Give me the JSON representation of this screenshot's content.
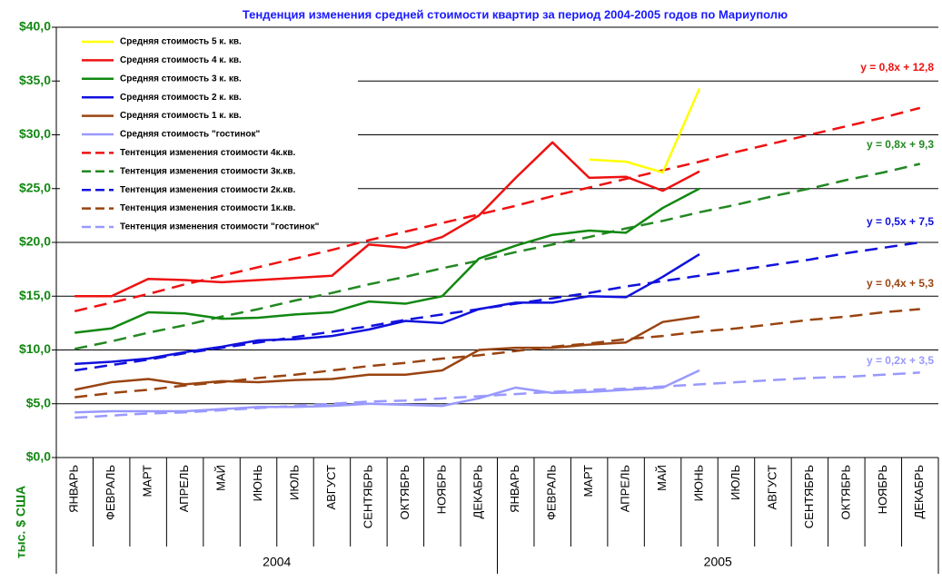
{
  "chart_data": {
    "type": "line",
    "title": "Тенденция изменения средней стоимости квартир за период 2004-2005 годов по Мариуполю",
    "y_label": "тыс. $ США",
    "categories": [
      "ЯНВАРЬ",
      "ФЕВРАЛЬ",
      "МАРТ",
      "АПРЕЛЬ",
      "МАЙ",
      "ИЮНЬ",
      "ИЮЛЬ",
      "АВГУСТ",
      "СЕНТЯБРЬ",
      "ОКТЯБРЬ",
      "НОЯБРЬ",
      "ДЕКАБРЬ",
      "ЯНВАРЬ",
      "ФЕВРАЛЬ",
      "МАРТ",
      "АПРЕЛЬ",
      "МАЙ",
      "ИЮНЬ",
      "ИЮЛЬ",
      "АВГУСТ",
      "СЕНТЯБРЬ",
      "ОКТЯБРЬ",
      "НОЯБРЬ",
      "ДЕКАБРЬ"
    ],
    "x_groups": [
      "2004",
      "2005"
    ],
    "ylim": [
      0,
      40
    ],
    "yticks": [
      {
        "value": 0,
        "label": "$0,0"
      },
      {
        "value": 5,
        "label": "$5,0"
      },
      {
        "value": 10,
        "label": "$10,0"
      },
      {
        "value": 15,
        "label": "$15,0"
      },
      {
        "value": 20,
        "label": "$20,0"
      },
      {
        "value": 25,
        "label": "$25,0"
      },
      {
        "value": 30,
        "label": "$30,0"
      },
      {
        "value": 35,
        "label": "$35,0"
      },
      {
        "value": 40,
        "label": "$40,0"
      }
    ],
    "grid": true,
    "series": [
      {
        "name": "Средняя стоимость 5 к. кв.",
        "color": "#ffff00",
        "values": [
          null,
          null,
          null,
          null,
          null,
          null,
          null,
          null,
          null,
          null,
          null,
          null,
          null,
          null,
          27.7,
          27.5,
          26.5,
          34.3,
          null,
          null,
          null,
          null,
          null,
          null
        ]
      },
      {
        "name": "Средняя стоимость 4 к. кв.",
        "color": "#ee1111",
        "values": [
          15.0,
          15.0,
          16.6,
          16.5,
          16.3,
          16.5,
          16.7,
          16.9,
          19.8,
          19.5,
          20.5,
          22.5,
          26.0,
          29.3,
          26.0,
          26.1,
          24.8,
          26.6,
          null,
          null,
          null,
          null,
          null,
          null
        ]
      },
      {
        "name": "Средняя стоимость 3 к. кв.",
        "color": "#118811",
        "values": [
          11.6,
          12.0,
          13.5,
          13.4,
          12.9,
          13.0,
          13.3,
          13.5,
          14.5,
          14.3,
          15.0,
          18.5,
          19.7,
          20.7,
          21.1,
          20.9,
          23.2,
          25.0,
          null,
          null,
          null,
          null,
          null,
          null
        ]
      },
      {
        "name": "Средняя стоимость 2 к. кв.",
        "color": "#1111dd",
        "values": [
          8.7,
          8.9,
          9.2,
          9.8,
          10.3,
          10.9,
          11.0,
          11.3,
          11.9,
          12.7,
          12.5,
          13.8,
          14.4,
          14.4,
          15.0,
          14.9,
          16.8,
          18.9,
          null,
          null,
          null,
          null,
          null,
          null
        ]
      },
      {
        "name": "Средняя стоимость 1 к. кв.",
        "color": "#994411",
        "values": [
          6.3,
          7.0,
          7.3,
          6.8,
          7.1,
          7.0,
          7.2,
          7.3,
          7.7,
          7.7,
          8.1,
          10.0,
          10.2,
          10.2,
          10.5,
          10.7,
          12.6,
          13.1,
          null,
          null,
          null,
          null,
          null,
          null
        ]
      },
      {
        "name": "Средняя стоимость \"гостинок\"",
        "color": "#9999ff",
        "values": [
          4.2,
          4.3,
          4.3,
          4.3,
          4.5,
          4.7,
          4.7,
          4.8,
          5.0,
          4.9,
          4.8,
          5.5,
          6.5,
          6.0,
          6.1,
          6.3,
          6.5,
          8.1,
          null,
          null,
          null,
          null,
          null,
          null
        ]
      },
      {
        "name": "Тентенция изменения стоимости 4к.кв.",
        "color": "#ee1111",
        "dashed": true,
        "equation": "y = 0,8x + 12,8",
        "values": [
          13.6,
          14.4,
          15.2,
          16.1,
          16.9,
          17.7,
          18.5,
          19.3,
          20.2,
          21.0,
          21.8,
          22.6,
          23.4,
          24.3,
          25.1,
          25.9,
          26.7,
          27.5,
          28.4,
          29.2,
          30.0,
          30.8,
          31.6,
          32.5
        ]
      },
      {
        "name": "Тентенция изменения стоимости 3к.кв.",
        "color": "#228822",
        "dashed": true,
        "equation": "y = 0,8x + 9,3",
        "values": [
          10.1,
          10.8,
          11.6,
          12.3,
          13.1,
          13.8,
          14.6,
          15.3,
          16.1,
          16.8,
          17.6,
          18.3,
          19.1,
          19.8,
          20.5,
          21.3,
          22.0,
          22.8,
          23.5,
          24.3,
          25.0,
          25.8,
          26.5,
          27.3
        ]
      },
      {
        "name": "Тентенция изменения стоимости 2к.кв.",
        "color": "#1111dd",
        "dashed": true,
        "equation": "y = 0,5x + 7,5",
        "values": [
          8.1,
          8.6,
          9.1,
          9.7,
          10.2,
          10.7,
          11.2,
          11.7,
          12.2,
          12.8,
          13.3,
          13.8,
          14.3,
          14.8,
          15.3,
          15.9,
          16.4,
          16.9,
          17.4,
          17.9,
          18.4,
          19.0,
          19.5,
          20.0
        ]
      },
      {
        "name": "Тентенция изменения стоимости 1к.кв.",
        "color": "#994411",
        "dashed": true,
        "equation": "y = 0,4x + 5,3",
        "values": [
          5.6,
          6.0,
          6.3,
          6.7,
          7.0,
          7.4,
          7.7,
          8.1,
          8.5,
          8.8,
          9.2,
          9.5,
          9.9,
          10.3,
          10.6,
          11.0,
          11.3,
          11.7,
          12.0,
          12.4,
          12.8,
          13.1,
          13.5,
          13.8
        ]
      },
      {
        "name": "Тентенция изменения стоимости \"гостинок\"",
        "color": "#9999ff",
        "dashed": true,
        "equation": "y = 0,2x + 3,5",
        "values": [
          3.7,
          3.9,
          4.1,
          4.2,
          4.4,
          4.6,
          4.8,
          5.0,
          5.2,
          5.3,
          5.5,
          5.7,
          5.9,
          6.1,
          6.3,
          6.4,
          6.6,
          6.8,
          7.0,
          7.2,
          7.4,
          7.5,
          7.7,
          7.9
        ]
      }
    ]
  }
}
